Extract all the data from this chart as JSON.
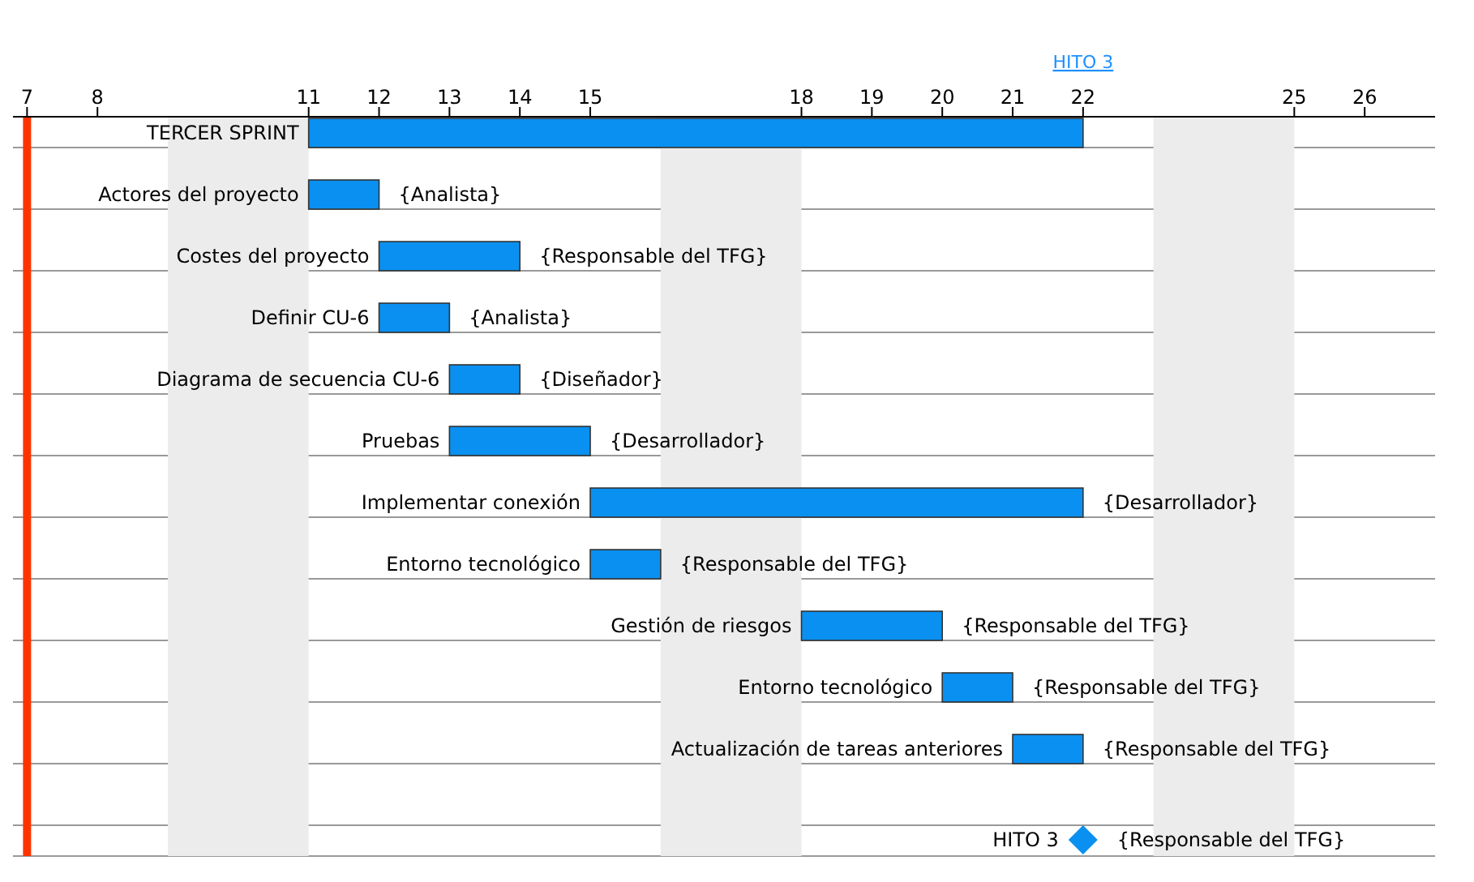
{
  "chart_data": {
    "type": "bar",
    "orientation": "horizontal",
    "categories": [
      "TERCER SPRINT",
      "Actores del proyecto",
      "Costes del proyecto",
      "Definir CU-6",
      "Diagrama de secuencia CU-6",
      "Pruebas",
      "Implementar conexión",
      "Entorno tecnológico",
      "Gestión de riesgos",
      "Entorno tecnológico",
      "Actualización de tareas anteriores",
      "HITO 3"
    ],
    "series": [
      {
        "color": "#0a90f0",
        "base": [
          11,
          11,
          12,
          12,
          13,
          13,
          15,
          15,
          18,
          20,
          21,
          null
        ],
        "values": [
          11,
          1,
          2,
          1,
          1,
          2,
          7,
          1,
          2,
          1,
          1,
          null
        ],
        "value_labels": [
          null,
          "{Analista}",
          "{Responsable del TFG}",
          "{Analista}",
          "{Diseñador}",
          "{Desarrollador}",
          "{Desarrollador}",
          "{Responsable del TFG}",
          "{Responsable del TFG}",
          "{Responsable del TFG}",
          "{Responsable del TFG}",
          null
        ]
      },
      {
        "type": "scatter",
        "marker": "diamond",
        "color": "#0a90f0",
        "values": [
          null,
          null,
          null,
          null,
          null,
          null,
          null,
          null,
          null,
          null,
          null,
          22
        ],
        "value_labels": [
          null,
          null,
          null,
          null,
          null,
          null,
          null,
          null,
          null,
          null,
          null,
          "{Responsable del TFG}"
        ]
      }
    ],
    "xlim": [
      6.8,
      27
    ],
    "xticks": [
      7,
      8,
      11,
      12,
      13,
      14,
      15,
      18,
      19,
      20,
      21,
      22,
      25,
      26
    ],
    "ref_lines": [
      {
        "axis": "x",
        "value": 7,
        "color": "#ff3300"
      }
    ],
    "bands": [
      {
        "axis": "x",
        "from": 9,
        "to": 11,
        "color": "#ececec"
      },
      {
        "axis": "x",
        "from": 16,
        "to": 18,
        "color": "#ececec"
      },
      {
        "axis": "x",
        "from": 23,
        "to": 25,
        "color": "#ececec"
      }
    ],
    "annotations": [
      "HITO 3"
    ],
    "grid": "y",
    "tick_labels": "x"
  }
}
